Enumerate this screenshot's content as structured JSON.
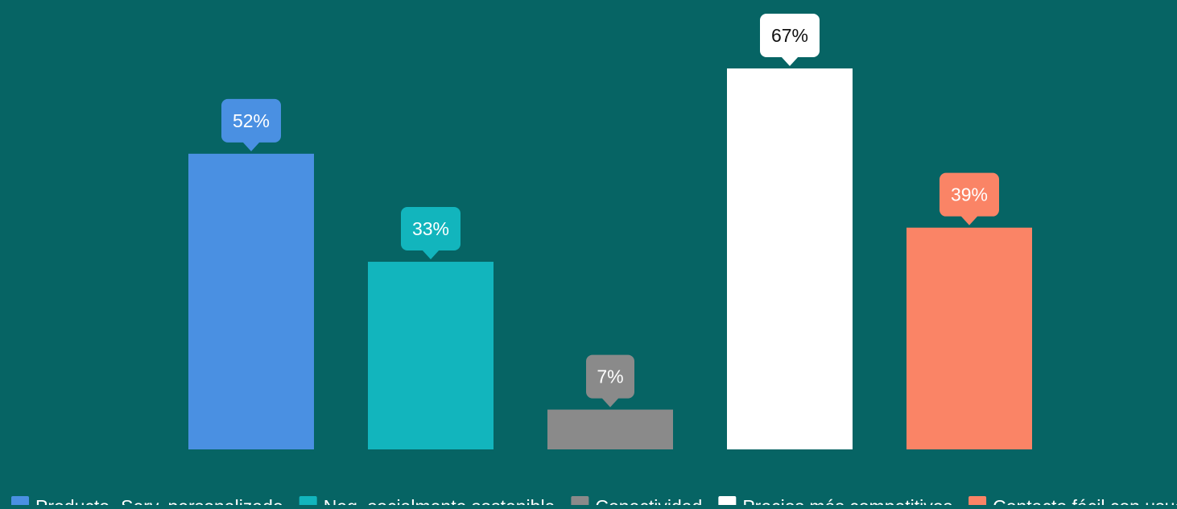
{
  "chart_data": {
    "type": "bar",
    "categories": [
      "Producto- Serv. personalizado",
      "Neg. socialmente sostenible",
      "Conectividad",
      "Precios más competitivos",
      "Contacto fácil con usuarios"
    ],
    "values": [
      52,
      33,
      7,
      67,
      39
    ],
    "value_labels": [
      "52%",
      "33%",
      "7%",
      "67%",
      "39%"
    ],
    "colors": [
      "#4a90e2",
      "#12b5bd",
      "#8a8a8a",
      "#ffffff",
      "#fa8466"
    ],
    "label_text_colors": [
      "#ffffff",
      "#ffffff",
      "#ffffff",
      "#111111",
      "#ffffff"
    ],
    "ylim": [
      0,
      100
    ],
    "grid": false,
    "legend_position": "bottom",
    "background": "#066464"
  }
}
